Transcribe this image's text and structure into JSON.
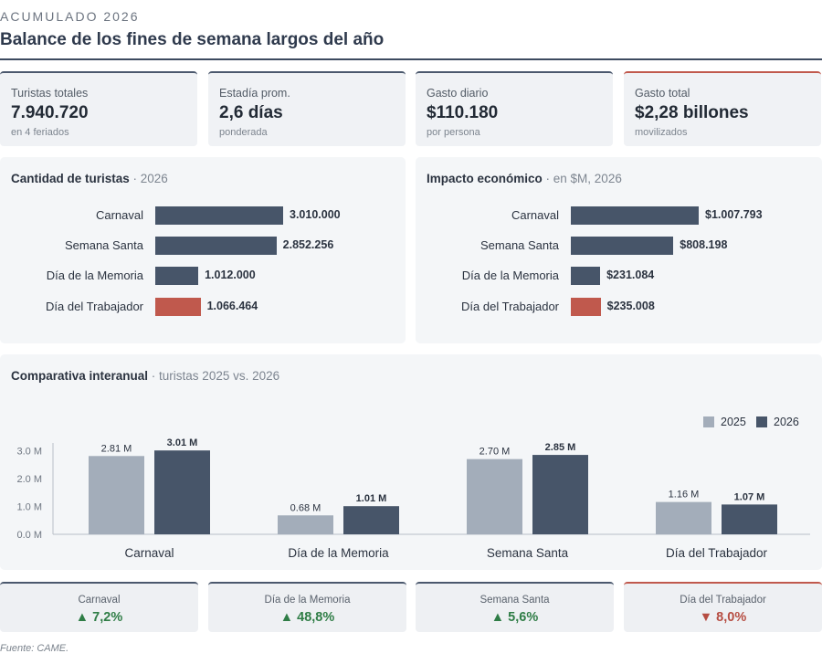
{
  "header": {
    "eyebrow": "ACUMULADO 2026",
    "title": "Balance de los fines de semana largos del año"
  },
  "kpis": [
    {
      "label": "Turistas totales",
      "value": "7.940.720",
      "sub": "en 4 feriados",
      "accent": "#4b586d"
    },
    {
      "label": "Estadía prom.",
      "value": "2,6 días",
      "sub": "ponderada",
      "accent": "#4b586d"
    },
    {
      "label": "Gasto diario",
      "value": "$110.180",
      "sub": "por persona",
      "accent": "#4b586d"
    },
    {
      "label": "Gasto total",
      "value": "$2,28 billones",
      "sub": "movilizados",
      "accent": "#c0594d"
    }
  ],
  "colors": {
    "navy": "#475569",
    "gray": "#a3adba",
    "red": "#c0594d",
    "up": "#2f7d46",
    "down": "#b64d42"
  },
  "chart_data": [
    {
      "type": "bar",
      "orientation": "horizontal",
      "title": "Cantidad de turistas",
      "subtitle": "2026",
      "categories": [
        "Carnaval",
        "Semana Santa",
        "Día de la Memoria",
        "Día del Trabajador"
      ],
      "values": [
        3010000,
        2852256,
        1012000,
        1066464
      ],
      "value_labels": [
        "3.010.000",
        "2.852.256",
        "1.012.000",
        "1.066.464"
      ],
      "highlight": "Día del Trabajador"
    },
    {
      "type": "bar",
      "orientation": "horizontal",
      "title": "Impacto económico",
      "subtitle": "en $M, 2026",
      "categories": [
        "Carnaval",
        "Semana Santa",
        "Día de la Memoria",
        "Día del Trabajador"
      ],
      "values": [
        1007793,
        808198,
        231084,
        235008
      ],
      "value_labels": [
        "$1.007.793",
        "$808.198",
        "$231.084",
        "$235.008"
      ],
      "highlight": "Día del Trabajador"
    },
    {
      "type": "bar",
      "orientation": "vertical",
      "title": "Comparativa interanual",
      "subtitle": "turistas 2025 vs. 2026",
      "categories": [
        "Carnaval",
        "Día de la Memoria",
        "Semana Santa",
        "Día del Trabajador"
      ],
      "series": [
        {
          "name": "2025",
          "values": [
            2.81,
            0.68,
            2.7,
            1.16
          ],
          "labels": [
            "2.81 M",
            "0.68 M",
            "2.70 M",
            "1.16 M"
          ]
        },
        {
          "name": "2026",
          "values": [
            3.01,
            1.01,
            2.85,
            1.07
          ],
          "labels": [
            "3.01 M",
            "1.01 M",
            "2.85 M",
            "1.07 M"
          ]
        }
      ],
      "yticks": [
        "0.0 M",
        "1.0 M",
        "2.0 M",
        "3.0 M"
      ],
      "ylim": [
        0,
        3.4
      ],
      "legend": "top-right",
      "grid": false
    }
  ],
  "yoy": [
    {
      "category": "Carnaval",
      "change": "▲ 7,2%",
      "direction": "up"
    },
    {
      "category": "Día de la Memoria",
      "change": "▲ 48,8%",
      "direction": "up"
    },
    {
      "category": "Semana Santa",
      "change": "▲ 5,6%",
      "direction": "up"
    },
    {
      "category": "Día del Trabajador",
      "change": "▼ 8,0%",
      "direction": "down"
    }
  ],
  "source": "Fuente: CAME."
}
